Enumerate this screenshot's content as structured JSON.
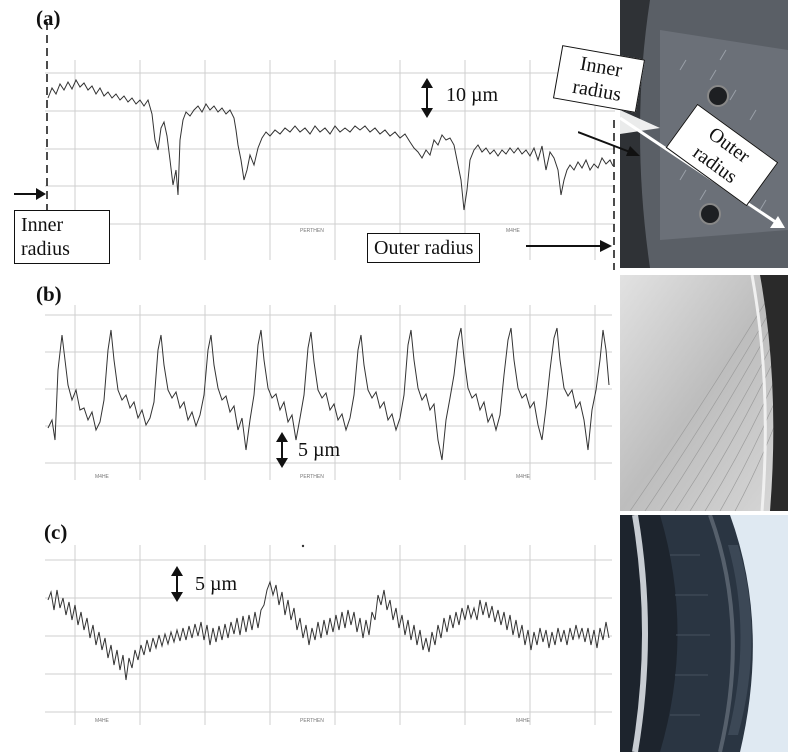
{
  "panels": [
    {
      "label": "(a)",
      "scale_label": "10 µm",
      "annotations": {
        "inner": "Inner radius",
        "outer": "Outer radius"
      },
      "photo_labels": {
        "inner": "Inner radius",
        "outer": "Outer radius"
      }
    },
    {
      "label": "(b)",
      "scale_label": "5 µm"
    },
    {
      "label": "(c)",
      "scale_label": "5 µm"
    }
  ],
  "colors": {
    "trace": "#333333",
    "grid": "#cfcfcf",
    "annotation": "#111111"
  },
  "icons": [
    "double-arrow-icon",
    "right-arrow-icon"
  ]
}
